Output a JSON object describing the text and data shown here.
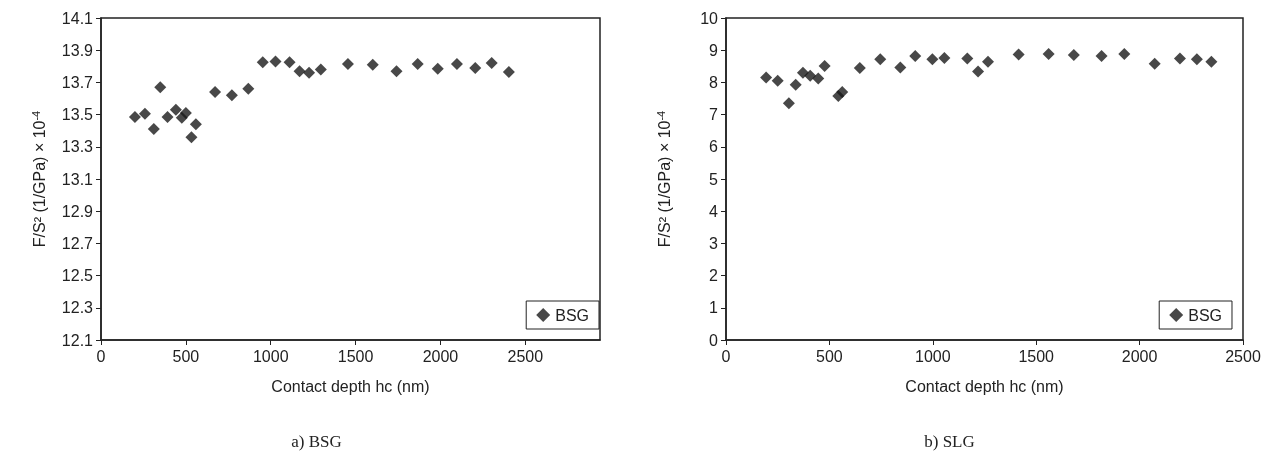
{
  "chart_data": [
    {
      "type": "scatter",
      "title": "a) BSG",
      "xlabel": "Contact depth hc (nm)",
      "ylabel": "F/S² (1/GPa) × 10$^{-4}$",
      "xlim": [
        0,
        2940
      ],
      "xticks": [
        0,
        500,
        1000,
        1500,
        2000,
        2500
      ],
      "ylim": [
        12.1,
        14.1
      ],
      "yticks": [
        12.1,
        12.3,
        12.5,
        12.7,
        12.9,
        13.1,
        13.3,
        13.5,
        13.7,
        13.9,
        14.1
      ],
      "grid": false,
      "legend": "bottom right",
      "marker": "diamond",
      "series": [
        {
          "name": "BSG",
          "color": "#1a1a1a",
          "x": [
            200,
            259,
            311,
            349,
            392,
            441,
            458,
            476,
            500,
            533,
            559,
            672,
            771,
            868,
            953,
            1028,
            1111,
            1170,
            1226,
            1295,
            1455,
            1601,
            1741,
            1866,
            1984,
            2097,
            2205,
            2302,
            2403
          ],
          "values": [
            13.485,
            13.505,
            13.41,
            13.67,
            13.485,
            13.53,
            null,
            13.48,
            13.51,
            13.36,
            13.44,
            13.64,
            13.62,
            13.66,
            13.825,
            13.83,
            13.825,
            13.77,
            13.76,
            13.78,
            13.815,
            13.81,
            13.77,
            13.815,
            13.785,
            13.815,
            13.79,
            13.82,
            13.765
          ]
        }
      ]
    },
    {
      "type": "scatter",
      "title": "b) SLG",
      "xlabel": "Contact depth hc (nm)",
      "ylabel": "F/S² (1/GPa) × 10$^{-4}$",
      "xlim": [
        0,
        2500
      ],
      "xticks": [
        0,
        500,
        1000,
        1500,
        2000,
        2500
      ],
      "ylim": [
        0,
        10
      ],
      "yticks": [
        0,
        1,
        2,
        3,
        4,
        5,
        6,
        7,
        8,
        9,
        10
      ],
      "grid": false,
      "legend": "bottom right",
      "marker": "diamond",
      "series": [
        {
          "name": "BSG",
          "color": "#1a1a1a",
          "x": [
            194,
            250,
            304,
            337,
            372,
            407,
            446,
            477,
            543,
            562,
            647,
            746,
            843,
            915,
            998,
            1056,
            1167,
            1219,
            1267,
            1415,
            1560,
            1682,
            1816,
            1926,
            2073,
            2195,
            2277,
            2347
          ],
          "values": [
            8.15,
            8.05,
            7.35,
            7.93,
            8.3,
            8.21,
            8.12,
            8.51,
            7.58,
            7.7,
            8.45,
            8.72,
            8.46,
            8.82,
            8.72,
            8.76,
            8.74,
            8.34,
            8.64,
            8.87,
            8.88,
            8.85,
            8.82,
            8.88,
            8.58,
            8.74,
            8.72,
            8.64
          ]
        }
      ]
    }
  ]
}
